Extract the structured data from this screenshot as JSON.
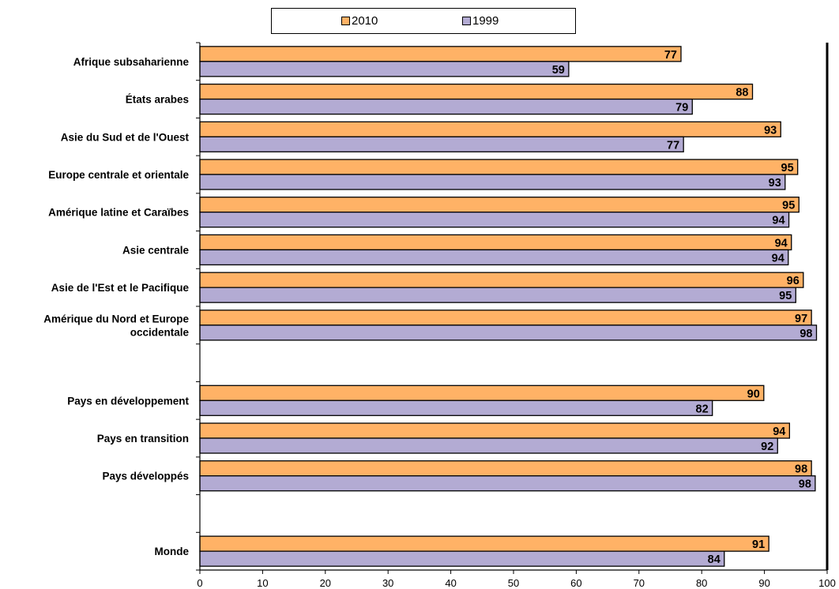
{
  "chart_data": {
    "type": "bar",
    "orientation": "horizontal",
    "categories": [
      "Afrique subsaharienne",
      "États arabes",
      "Asie du Sud et de l'Ouest",
      "Europe centrale et orientale",
      "Amérique latine et Caraïbes",
      "Asie centrale",
      "Asie de l'Est et le Pacifique",
      "Amérique du Nord et Europe occidentale",
      "",
      "Pays en développement",
      "Pays en transition",
      "Pays développés",
      "",
      "Monde"
    ],
    "category_lines": [
      [
        "Afrique subsaharienne"
      ],
      [
        "États arabes"
      ],
      [
        "Asie du Sud et de l'Ouest"
      ],
      [
        "Europe centrale et orientale"
      ],
      [
        "Amérique latine et Caraïbes"
      ],
      [
        "Asie centrale"
      ],
      [
        "Asie de l'Est et le Pacifique"
      ],
      [
        "Amérique du Nord et Europe",
        "occidentale"
      ],
      [],
      [
        "Pays en développement"
      ],
      [
        "Pays en transition"
      ],
      [
        "Pays développés"
      ],
      [],
      [
        "Monde"
      ]
    ],
    "series": [
      {
        "name": "2010",
        "color": "#FFB266",
        "values": [
          76.7,
          88.1,
          92.6,
          95.3,
          95.5,
          94.3,
          96.2,
          97.5,
          null,
          89.9,
          94.0,
          97.5,
          null,
          90.7
        ],
        "labels": [
          "77",
          "88",
          "93",
          "95",
          "95",
          "94",
          "96",
          "97",
          "",
          "90",
          "94",
          "98",
          "",
          "91"
        ]
      },
      {
        "name": "1999",
        "color": "#B3ABD3",
        "values": [
          58.8,
          78.5,
          77.1,
          93.3,
          93.9,
          93.8,
          95.0,
          98.3,
          null,
          81.7,
          92.1,
          98.1,
          null,
          83.6
        ],
        "labels": [
          "59",
          "79",
          "77",
          "93",
          "94",
          "94",
          "95",
          "98",
          "",
          "82",
          "92",
          "98",
          "",
          "84"
        ]
      }
    ],
    "xlim": [
      0,
      100
    ],
    "xticks": [
      "0",
      "10",
      "20",
      "30",
      "40",
      "50",
      "60",
      "70",
      "80",
      "90",
      "100"
    ],
    "legend_position": "top",
    "grid": false,
    "xlabel": "",
    "ylabel": "",
    "title": ""
  },
  "legend": {
    "items": [
      {
        "label": "2010",
        "color": "#FFB266"
      },
      {
        "label": "1999",
        "color": "#B3ABD3"
      }
    ]
  }
}
